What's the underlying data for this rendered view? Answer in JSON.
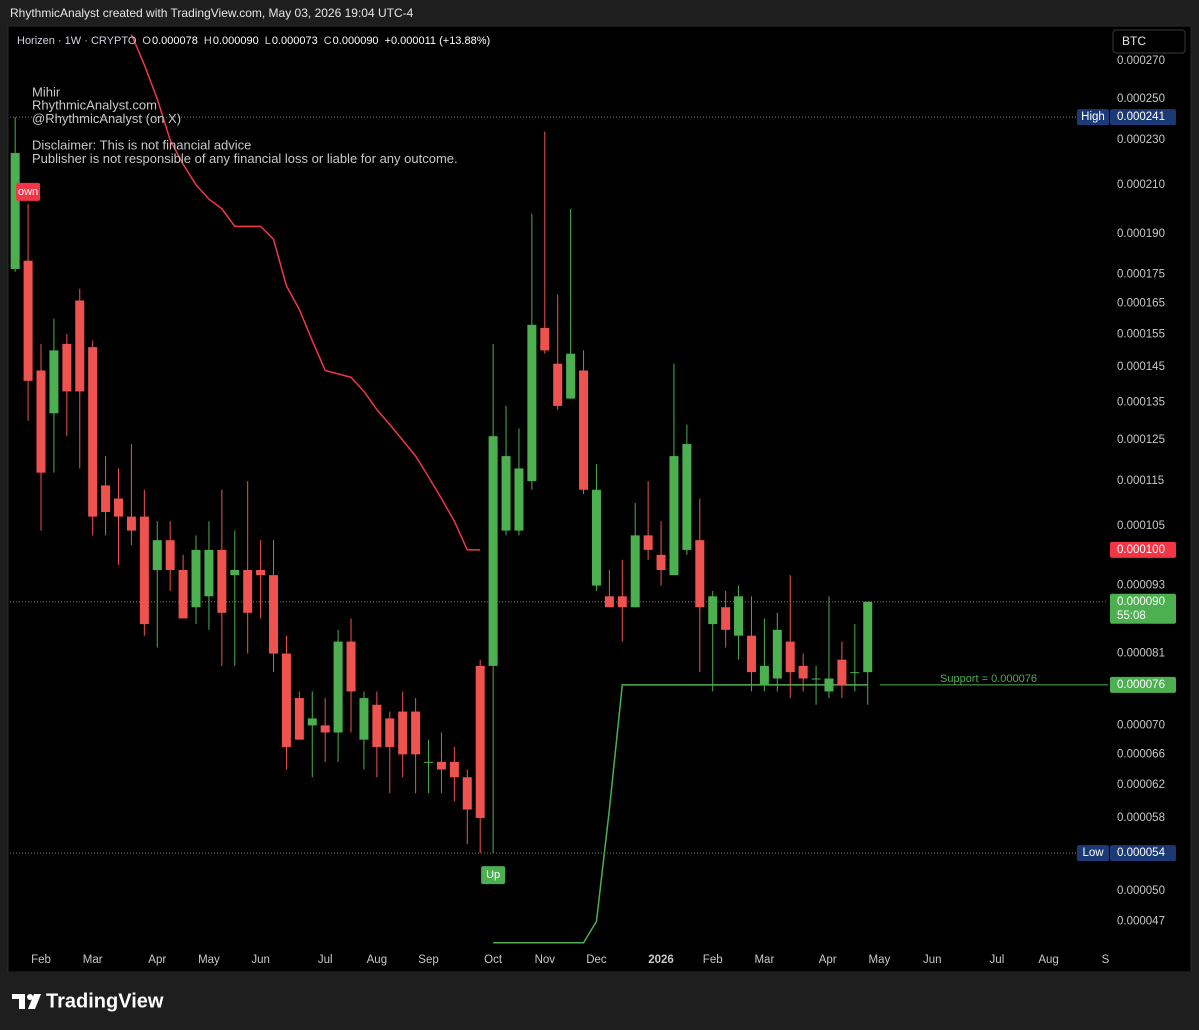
{
  "header": {
    "caption": "RhythmicAnalyst created with TradingView.com, May 03, 2026 19:04 UTC-4"
  },
  "chart_data": {
    "type": "candlestick",
    "legend": {
      "symbol": "Horizen · 1W · CRYPTO",
      "ohlc": [
        {
          "key": "O",
          "value": "0.000078"
        },
        {
          "key": "H",
          "value": "0.000090"
        },
        {
          "key": "L",
          "value": "0.000073"
        },
        {
          "key": "C",
          "value": "0.000090"
        }
      ],
      "change": "+0.000011 (+13.88%)"
    },
    "annotations": [
      [
        "Mihir",
        "RhythmicAnalyst.com",
        "@RhythmicAnalyst (on X)"
      ],
      [
        "Disclaimer: This is not financial advice",
        "Publisher is not responsible of any financial loss or liable for any outcome."
      ]
    ],
    "currency": "BTC",
    "colors": {
      "up": "#4caf50",
      "down": "#ef5350"
    },
    "x": [
      0,
      1,
      2,
      3,
      4,
      5,
      6,
      7,
      8,
      9,
      10,
      11,
      12,
      13,
      14,
      15,
      16,
      17,
      18,
      19,
      20,
      21,
      22,
      23,
      24,
      25,
      26,
      27,
      28,
      29,
      30,
      31,
      32,
      33,
      34,
      35,
      36,
      37,
      38,
      39,
      40,
      41,
      42,
      43,
      44,
      45,
      46,
      47,
      48,
      49,
      50,
      51,
      52,
      53,
      54,
      55,
      56,
      57,
      58,
      59,
      60,
      61,
      62,
      63,
      64,
      65,
      66
    ],
    "open": [
      0.000177,
      0.00018,
      0.000144,
      0.000132,
      0.000152,
      0.000166,
      0.000151,
      0.000114,
      0.000111,
      0.000107,
      0.000107,
      9.6e-05,
      0.000102,
      9.6e-05,
      8.9e-05,
      9.1e-05,
      0.0001,
      9.5e-05,
      9.6e-05,
      9.6e-05,
      9.5e-05,
      8.1e-05,
      7.4e-05,
      7e-05,
      7e-05,
      6.9e-05,
      8.3e-05,
      6.8e-05,
      7.3e-05,
      7.1e-05,
      7.2e-05,
      7.2e-05,
      6.5e-05,
      6.5e-05,
      6.5e-05,
      6.3e-05,
      7.9e-05,
      7.9e-05,
      0.000104,
      0.000104,
      0.000115,
      0.000157,
      0.000146,
      0.000136,
      0.000144,
      9.3e-05,
      9.1e-05,
      9.1e-05,
      8.9e-05,
      0.000103,
      9.9e-05,
      9.5e-05,
      0.0001,
      0.000102,
      8.6e-05,
      8.9e-05,
      8.4e-05,
      8.4e-05,
      7.6e-05,
      7.7e-05,
      8.3e-05,
      7.9e-05,
      7.7e-05,
      7.5e-05,
      8e-05,
      7.8e-05,
      7.8e-05
    ],
    "high": [
      0.000241,
      0.000202,
      0.000152,
      0.00016,
      0.000155,
      0.00017,
      0.000153,
      0.000121,
      0.000118,
      0.000124,
      0.000113,
      0.000106,
      0.000106,
      9.9e-05,
      0.000103,
      0.000106,
      0.000113,
      0.000104,
      0.000115,
      0.000102,
      0.000102,
      8.4e-05,
      7.5e-05,
      7.5e-05,
      7.4e-05,
      8.5e-05,
      8.7e-05,
      7.5e-05,
      7.5e-05,
      7.2e-05,
      7.5e-05,
      7.4e-05,
      6.8e-05,
      6.9e-05,
      6.7e-05,
      6.4e-05,
      8e-05,
      0.000152,
      0.000134,
      0.000128,
      0.000198,
      0.000234,
      0.000168,
      0.0002,
      0.00015,
      0.000119,
      9.6e-05,
      9.8e-05,
      0.00011,
      0.000115,
      0.000106,
      0.000146,
      0.000129,
      0.000111,
      9.2e-05,
      9.2e-05,
      9.3e-05,
      9.1e-05,
      8.7e-05,
      8.8e-05,
      9.5e-05,
      8.1e-05,
      7.9e-05,
      9.1e-05,
      8.3e-05,
      8.6e-05,
      9e-05
    ],
    "low": [
      0.000176,
      0.00013,
      0.000104,
      0.000117,
      0.000126,
      0.000118,
      0.000103,
      0.000103,
      9.7e-05,
      0.000101,
      8.4e-05,
      8.2e-05,
      9.2e-05,
      8.7e-05,
      8.6e-05,
      8.5e-05,
      7.9e-05,
      7.9e-05,
      8.1e-05,
      8.7e-05,
      7.8e-05,
      6.4e-05,
      6.8e-05,
      6.3e-05,
      6.5e-05,
      6.5e-05,
      6.9e-05,
      6.4e-05,
      6.3e-05,
      6.1e-05,
      6.3e-05,
      6.1e-05,
      6.1e-05,
      6.1e-05,
      6e-05,
      5.5e-05,
      5.4e-05,
      5.4e-05,
      0.000103,
      0.000103,
      0.000113,
      0.000149,
      0.000133,
      0.000136,
      0.000112,
      9.2e-05,
      8.9e-05,
      8.3e-05,
      8.9e-05,
      9.8e-05,
      9.3e-05,
      9.5e-05,
      9.9e-05,
      7.8e-05,
      7.5e-05,
      8.2e-05,
      8e-05,
      7.5e-05,
      7.5e-05,
      7.5e-05,
      7.4e-05,
      7.5e-05,
      7.3e-05,
      7.4e-05,
      7.4e-05,
      7.5e-05,
      7.3e-05
    ],
    "close": [
      0.000224,
      0.000141,
      0.000117,
      0.00015,
      0.000138,
      0.000138,
      0.000107,
      0.000108,
      0.000107,
      0.000104,
      8.6e-05,
      0.000102,
      9.6e-05,
      8.7e-05,
      0.0001,
      0.0001,
      8.8e-05,
      9.6e-05,
      8.8e-05,
      9.5e-05,
      8.1e-05,
      6.7e-05,
      6.8e-05,
      7.1e-05,
      6.9e-05,
      8.3e-05,
      7.5e-05,
      7.4e-05,
      6.7e-05,
      6.7e-05,
      6.6e-05,
      6.6e-05,
      6.5e-05,
      6.4e-05,
      6.3e-05,
      5.9e-05,
      5.8e-05,
      0.000126,
      0.000121,
      0.000118,
      0.000158,
      0.00015,
      0.000134,
      0.000149,
      0.000113,
      0.000113,
      8.9e-05,
      8.9e-05,
      0.000103,
      0.0001,
      9.6e-05,
      0.000121,
      0.000124,
      8.9e-05,
      9.1e-05,
      8.5e-05,
      9.1e-05,
      7.8e-05,
      7.9e-05,
      8.5e-05,
      7.8e-05,
      7.7e-05,
      7.7e-05,
      7.7e-05,
      7.6e-05,
      7.8e-05,
      9e-05
    ],
    "trend_lines": [
      {
        "color": "#f23645",
        "values": [
          null,
          null,
          null,
          null,
          null,
          null,
          null,
          null,
          null,
          0.000285,
          0.000268,
          0.00025,
          0.00023,
          0.000219,
          0.00021,
          0.000204,
          0.0002,
          0.000193,
          0.000193,
          0.000193,
          0.000188,
          0.000171,
          0.000163,
          0.000153,
          0.000144,
          0.000143,
          0.000142,
          0.000138,
          0.000133,
          0.000129,
          0.000125,
          0.000121,
          0.000116,
          0.000111,
          0.000106,
          0.0001,
          0.0001,
          null,
          null,
          null,
          null,
          null,
          null,
          null,
          null,
          null,
          null,
          null,
          null,
          null,
          null,
          null,
          null,
          null,
          null,
          null,
          null,
          null,
          null,
          null,
          null,
          null,
          null,
          null,
          null,
          null,
          null
        ]
      },
      {
        "color": "#4caf50",
        "values": [
          null,
          null,
          null,
          null,
          null,
          null,
          null,
          null,
          null,
          null,
          null,
          null,
          null,
          null,
          null,
          null,
          null,
          null,
          null,
          null,
          null,
          null,
          null,
          null,
          null,
          null,
          null,
          null,
          null,
          null,
          null,
          null,
          null,
          null,
          null,
          null,
          null,
          4.5e-05,
          4.5e-05,
          4.5e-05,
          4.5e-05,
          4.5e-05,
          4.5e-05,
          4.5e-05,
          4.5e-05,
          4.7e-05,
          5.9e-05,
          7.6e-05,
          7.6e-05,
          7.6e-05,
          7.6e-05,
          7.6e-05,
          7.6e-05,
          7.6e-05,
          7.6e-05,
          7.6e-05,
          7.6e-05,
          7.6e-05,
          7.6e-05,
          7.6e-05,
          7.6e-05,
          7.6e-05,
          7.6e-05,
          7.6e-05,
          7.6e-05,
          7.6e-05,
          7.6e-05
        ]
      }
    ],
    "signals": [
      {
        "text": "own",
        "candle": 1,
        "position": "above",
        "color": "#f23645"
      },
      {
        "text": "Up",
        "candle": 37,
        "position": "below",
        "color": "#4caf50"
      }
    ],
    "price_labels": [
      {
        "value": 0.000241,
        "label": "0.000241",
        "tag": "High",
        "color": "#1b3a75",
        "line": "dotted"
      },
      {
        "value": 0.0001,
        "label": "0.000100",
        "color": "#f23645"
      },
      {
        "value": 9e-05,
        "label": "0.000090",
        "countdown": "55:08",
        "color": "#4caf50",
        "line": "dotted"
      },
      {
        "value": 7.6e-05,
        "label": "0.000076",
        "note": "Support =  0.000076",
        "color": "#4caf50",
        "line": "solid"
      },
      {
        "value": 5.4e-05,
        "label": "0.000054",
        "tag": "Low",
        "color": "#1b3a75",
        "line": "dotted"
      }
    ],
    "xlim": [
      -0.4,
      84.6
    ],
    "xticks": [
      {
        "value": 2,
        "label": "Feb"
      },
      {
        "value": 6,
        "label": "Mar"
      },
      {
        "value": 11,
        "label": "Apr"
      },
      {
        "value": 15,
        "label": "May"
      },
      {
        "value": 19,
        "label": "Jun"
      },
      {
        "value": 24,
        "label": "Jul"
      },
      {
        "value": 28,
        "label": "Aug"
      },
      {
        "value": 32,
        "label": "Sep"
      },
      {
        "value": 37,
        "label": "Oct"
      },
      {
        "value": 41,
        "label": "Nov"
      },
      {
        "value": 45,
        "label": "Dec"
      },
      {
        "value": 50,
        "label": "2026"
      },
      {
        "value": 54,
        "label": "Feb"
      },
      {
        "value": 58,
        "label": "Mar"
      },
      {
        "value": 62.9,
        "label": "Apr"
      },
      {
        "value": 66.9,
        "label": "May"
      },
      {
        "value": 71,
        "label": "Jun"
      },
      {
        "value": 76,
        "label": "Jul"
      },
      {
        "value": 80,
        "label": "Aug"
      },
      {
        "value": 84.4,
        "label": "S"
      }
    ],
    "ylim": [
      4.48e-05,
      0.00029
    ],
    "log_scale": true,
    "grid": false,
    "yticks": [
      {
        "value": 0.00027,
        "label": "0.000270"
      },
      {
        "value": 0.00025,
        "label": "0.000250"
      },
      {
        "value": 0.00023,
        "label": "0.000230"
      },
      {
        "value": 0.00021,
        "label": "0.000210"
      },
      {
        "value": 0.00019,
        "label": "0.000190"
      },
      {
        "value": 0.000175,
        "label": "0.000175"
      },
      {
        "value": 0.000165,
        "label": "0.000165"
      },
      {
        "value": 0.000155,
        "label": "0.000155"
      },
      {
        "value": 0.000145,
        "label": "0.000145"
      },
      {
        "value": 0.000135,
        "label": "0.000135"
      },
      {
        "value": 0.000125,
        "label": "0.000125"
      },
      {
        "value": 0.000115,
        "label": "0.000115"
      },
      {
        "value": 0.000105,
        "label": "0.000105"
      },
      {
        "value": 9.3e-05,
        "label": "0.000093"
      },
      {
        "value": 8.1e-05,
        "label": "0.000081"
      },
      {
        "value": 7e-05,
        "label": "0.000070"
      },
      {
        "value": 6.6e-05,
        "label": "0.000066"
      },
      {
        "value": 6.2e-05,
        "label": "0.000062"
      },
      {
        "value": 5.8e-05,
        "label": "0.000058"
      },
      {
        "value": 5e-05,
        "label": "0.000050"
      },
      {
        "value": 4.7e-05,
        "label": "0.000047"
      }
    ]
  },
  "footer": {
    "brand": "TradingView"
  }
}
